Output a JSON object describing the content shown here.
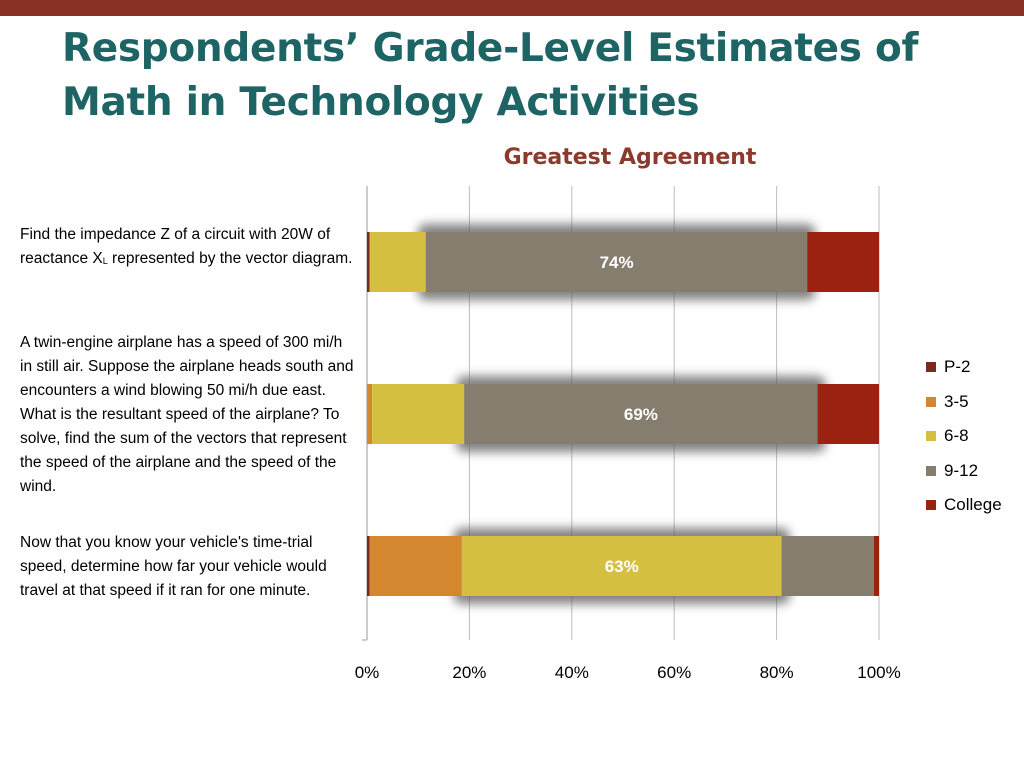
{
  "slide": {
    "title": "Respondents’ Grade-Level Estimates of Math in Technology Activities"
  },
  "rows": [
    {
      "label_main": "Find the impedance Z of a circuit with 20W of reactance X",
      "label_sub": "L",
      "label_end": " represented by the vector diagram."
    },
    {
      "label_main": "A twin-engine airplane has a speed of 300 mi/h in still air. Suppose the airplane heads south and encounters a wind blowing 50 mi/h due east. What is the resultant speed of the airplane? To solve, find the sum of the vectors that represent the speed of the airplane and the speed of the wind.",
      "label_sub": "",
      "label_end": ""
    },
    {
      "label_main": "Now that you know your vehicle's time-trial speed, determine how far your vehicle would travel at that speed if it ran for one minute.",
      "label_sub": "",
      "label_end": ""
    }
  ],
  "chart_data": {
    "type": "bar",
    "orientation": "horizontal",
    "stacked": "percent",
    "title": "Greatest Agreement",
    "categories": [
      "impedance",
      "airplane",
      "vehicle"
    ],
    "series": [
      {
        "name": "P-2",
        "color": "#7b2a1e",
        "values": [
          0.5,
          0,
          0.5
        ]
      },
      {
        "name": "3-5",
        "color": "#d5872f",
        "values": [
          0,
          1,
          18
        ]
      },
      {
        "name": "6-8",
        "color": "#d4bf40",
        "values": [
          11,
          18,
          62.5
        ]
      },
      {
        "name": "9-12",
        "color": "#857e6e",
        "values": [
          74.5,
          69,
          18
        ]
      },
      {
        "name": "College",
        "color": "#9b2210",
        "values": [
          14,
          12,
          1
        ]
      }
    ],
    "highlight_labels": [
      "74%",
      "69%",
      "63%"
    ],
    "xlim": [
      0,
      100
    ],
    "xticks": [
      "0%",
      "20%",
      "40%",
      "60%",
      "80%",
      "100%"
    ],
    "grid": true,
    "legend_position": "right"
  }
}
